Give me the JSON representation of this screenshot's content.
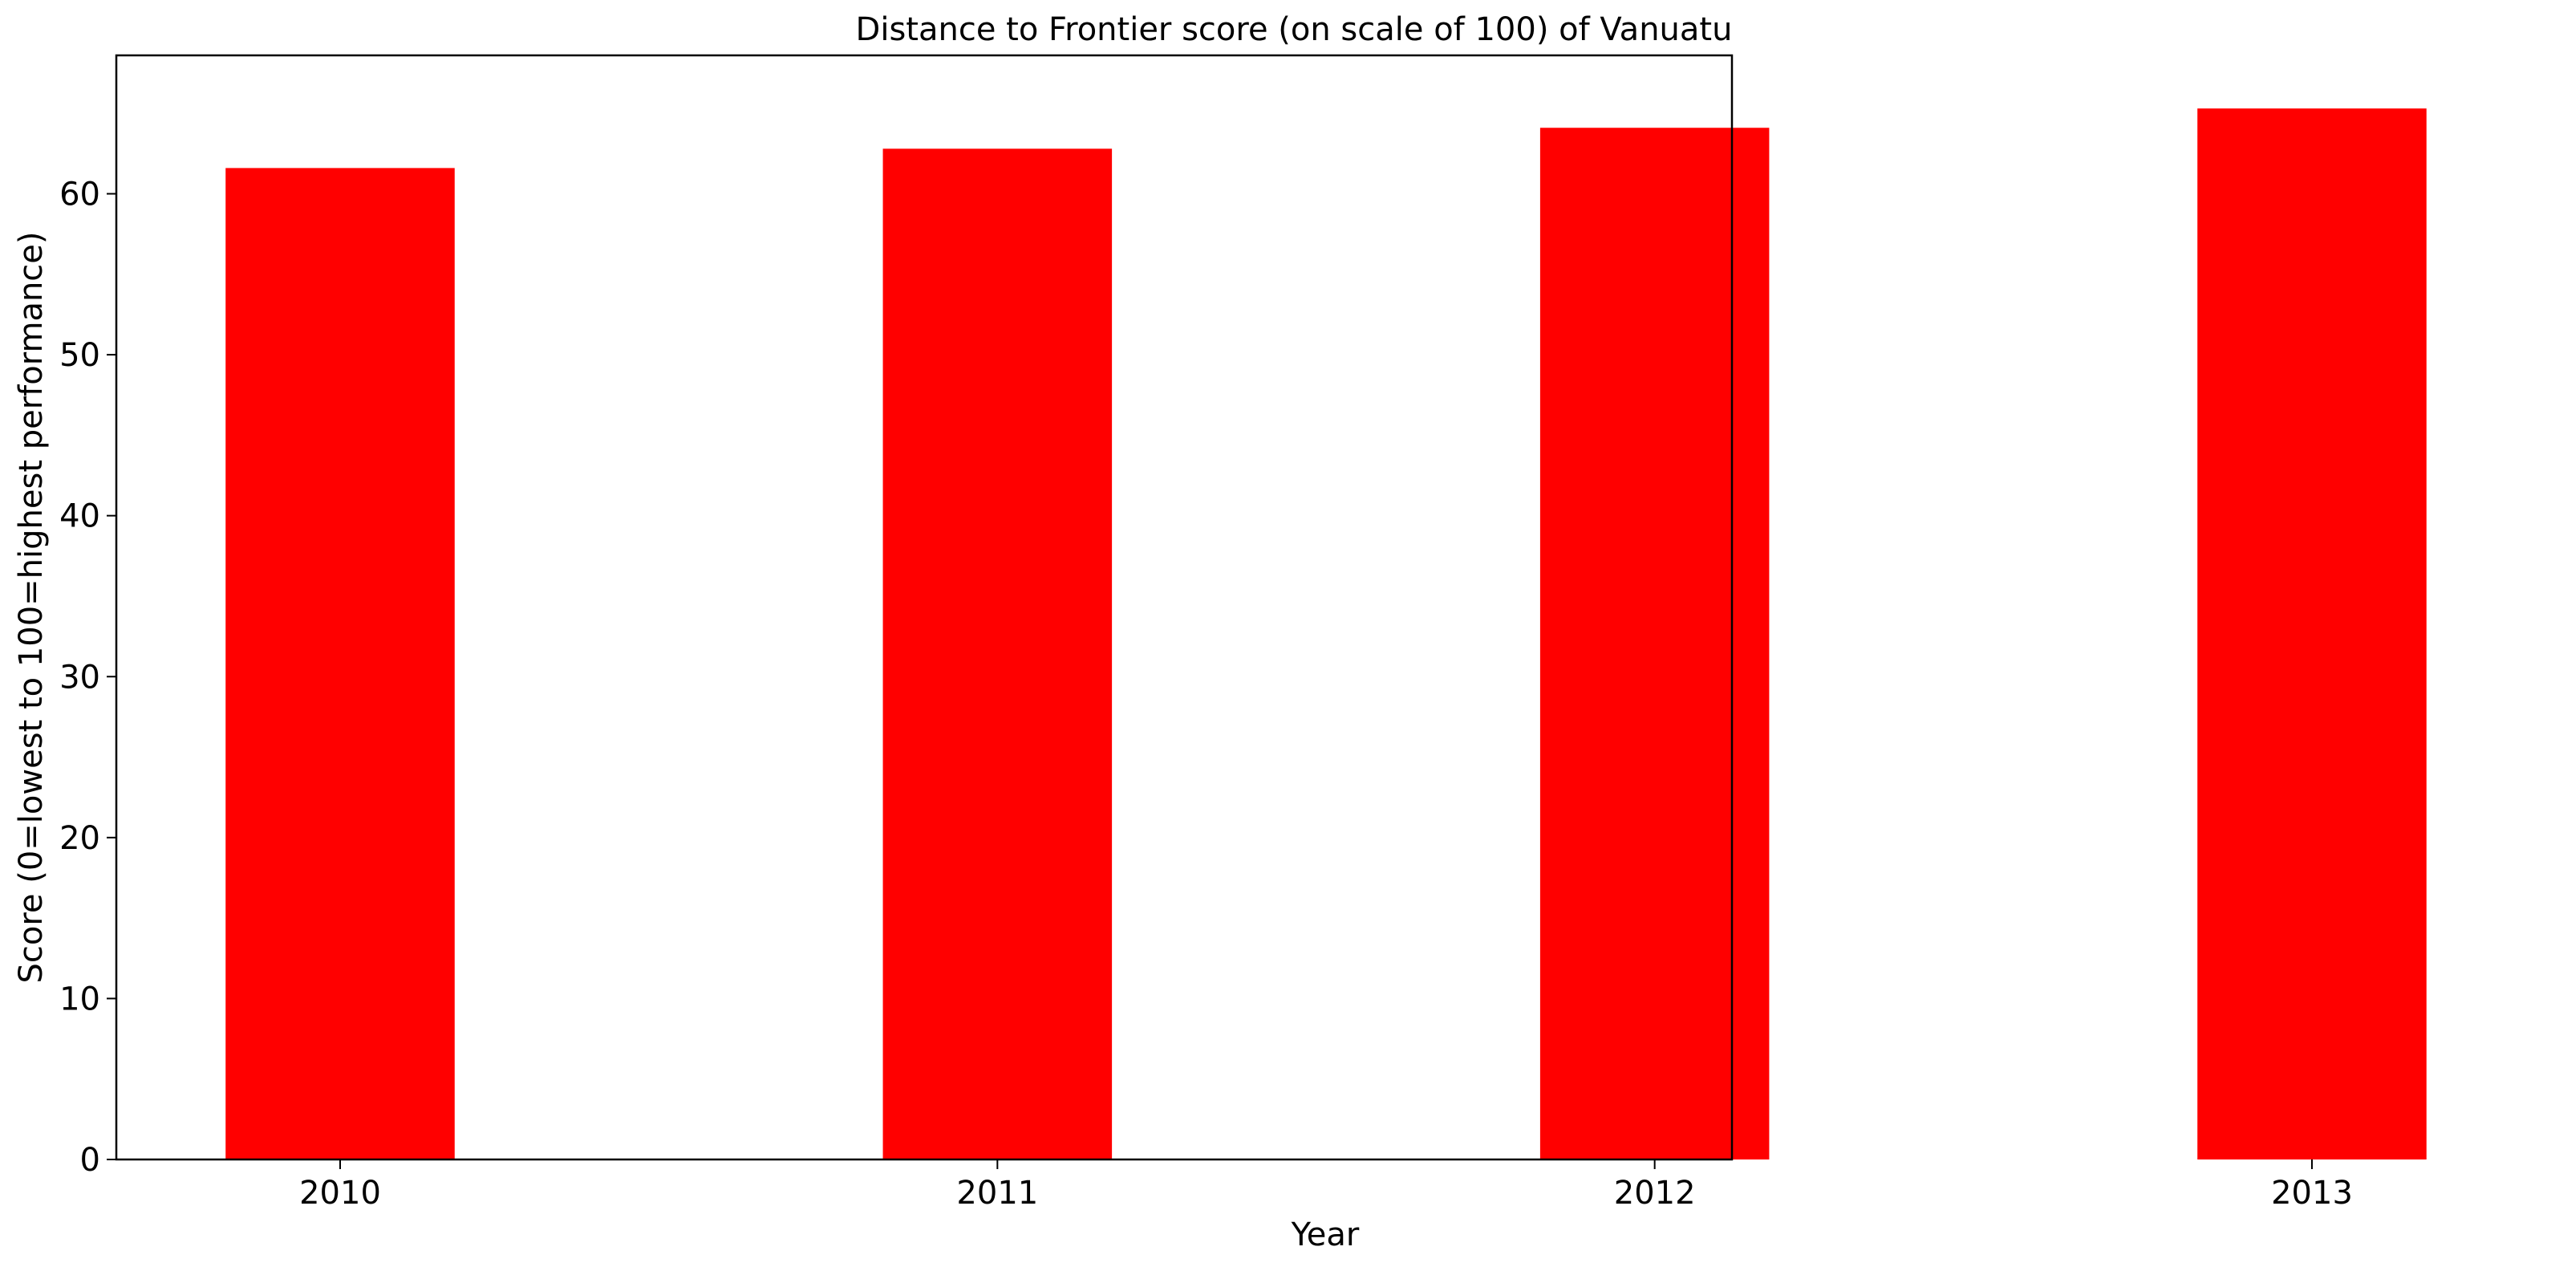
{
  "chart_data": {
    "type": "bar",
    "title": "Distance to Frontier score (on scale of 100) of Vanuatu",
    "xlabel": "Year",
    "ylabel": "Score (0=lowest to 100=highest performance)",
    "categories": [
      "2010",
      "2011",
      "2012",
      "2013"
    ],
    "values": [
      61.6,
      62.8,
      64.1,
      65.3
    ],
    "ylim": [
      0,
      68.6
    ],
    "yticks": [
      0,
      10,
      20,
      30,
      40,
      50,
      60
    ],
    "bar_color": "#ff0000",
    "grid": false,
    "legend": "none"
  }
}
